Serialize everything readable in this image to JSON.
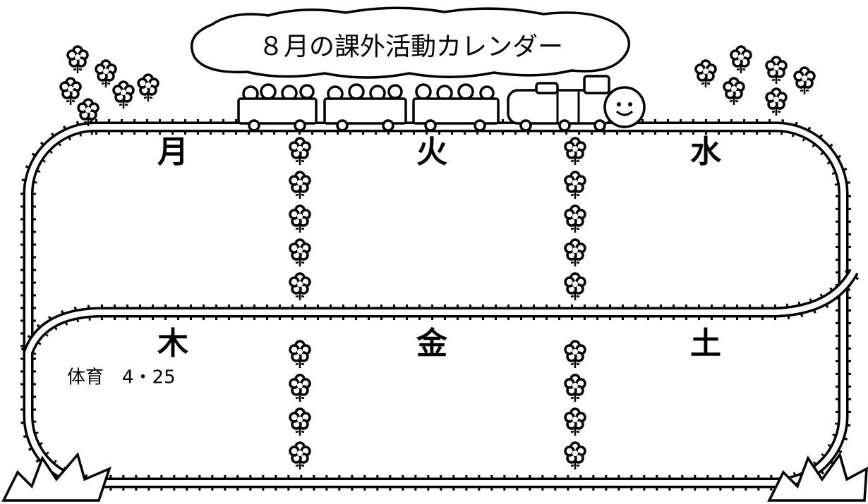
{
  "title": "８月の課外活動カレンダー",
  "cells": [
    {
      "day": "月"
    },
    {
      "day": "火"
    },
    {
      "day": "水"
    },
    {
      "day": "木",
      "note": "体育　4・25"
    },
    {
      "day": "金"
    },
    {
      "day": "土"
    }
  ]
}
